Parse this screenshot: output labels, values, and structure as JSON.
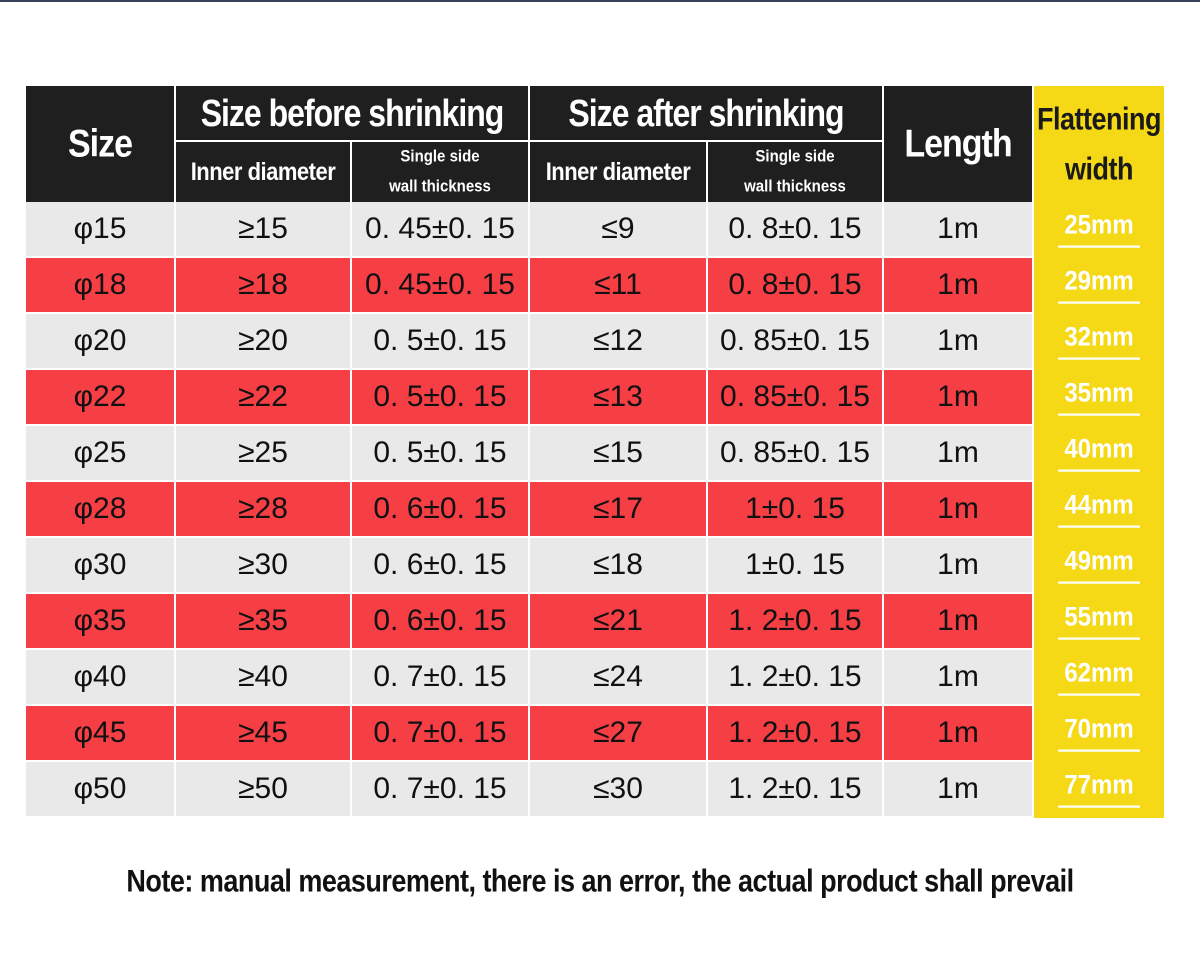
{
  "table": {
    "headers": {
      "size": "Size",
      "before": "Size before shrinking",
      "after": "Size after shrinking",
      "length": "Length",
      "flattening": [
        "Flattening",
        "width"
      ],
      "inner_diameter": "Inner diameter",
      "wall_thickness": [
        "Single side",
        "wall thickness"
      ]
    },
    "rows": [
      {
        "size": "φ15",
        "before_id": "≥15",
        "before_wall": "0. 45±0. 15",
        "after_id": "≤9",
        "after_wall": "0. 8±0. 15",
        "length": "1m",
        "width": "25mm"
      },
      {
        "size": "φ18",
        "before_id": "≥18",
        "before_wall": "0. 45±0. 15",
        "after_id": "≤11",
        "after_wall": "0. 8±0. 15",
        "length": "1m",
        "width": "29mm"
      },
      {
        "size": "φ20",
        "before_id": "≥20",
        "before_wall": "0. 5±0. 15",
        "after_id": "≤12",
        "after_wall": "0. 85±0. 15",
        "length": "1m",
        "width": "32mm"
      },
      {
        "size": "φ22",
        "before_id": "≥22",
        "before_wall": "0. 5±0. 15",
        "after_id": "≤13",
        "after_wall": "0. 85±0. 15",
        "length": "1m",
        "width": "35mm"
      },
      {
        "size": "φ25",
        "before_id": "≥25",
        "before_wall": "0. 5±0. 15",
        "after_id": "≤15",
        "after_wall": "0. 85±0. 15",
        "length": "1m",
        "width": "40mm"
      },
      {
        "size": "φ28",
        "before_id": "≥28",
        "before_wall": "0. 6±0. 15",
        "after_id": "≤17",
        "after_wall": "1±0. 15",
        "length": "1m",
        "width": "44mm"
      },
      {
        "size": "φ30",
        "before_id": "≥30",
        "before_wall": "0. 6±0. 15",
        "after_id": "≤18",
        "after_wall": "1±0. 15",
        "length": "1m",
        "width": "49mm"
      },
      {
        "size": "φ35",
        "before_id": "≥35",
        "before_wall": "0. 6±0. 15",
        "after_id": "≤21",
        "after_wall": "1. 2±0. 15",
        "length": "1m",
        "width": "55mm"
      },
      {
        "size": "φ40",
        "before_id": "≥40",
        "before_wall": "0. 7±0. 15",
        "after_id": "≤24",
        "after_wall": "1. 2±0. 15",
        "length": "1m",
        "width": "62mm"
      },
      {
        "size": "φ45",
        "before_id": "≥45",
        "before_wall": "0. 7±0. 15",
        "after_id": "≤27",
        "after_wall": "1. 2±0. 15",
        "length": "1m",
        "width": "70mm"
      },
      {
        "size": "φ50",
        "before_id": "≥50",
        "before_wall": "0. 7±0. 15",
        "after_id": "≤30",
        "after_wall": "1. 2±0. 15",
        "length": "1m",
        "width": "77mm"
      }
    ]
  },
  "note": "Note: manual measurement, there is an error, the actual product shall prevail",
  "colors": {
    "header_bg": "#1f1f1f",
    "row_light": "#e9e9e9",
    "row_red": "#f53f45",
    "flattening_yellow": "#f5d916"
  }
}
